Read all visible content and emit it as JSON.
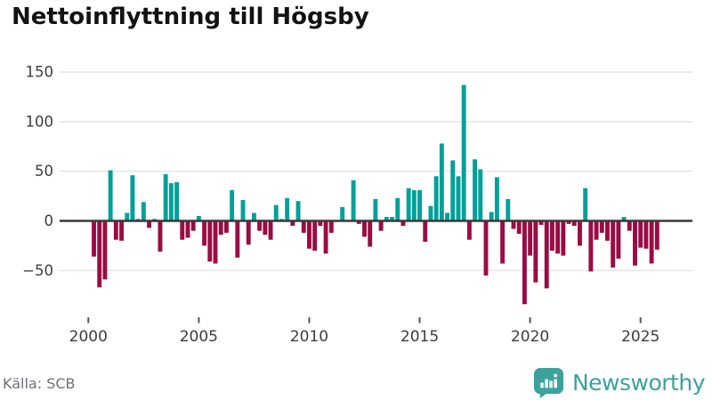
{
  "header": {
    "title": "Nettoinflyttning till Högsby"
  },
  "footer": {
    "source": "Källa: SCB",
    "brand": "Newsworthy",
    "brand_icon": "newsworthy-bubble-barchart-icon"
  },
  "colors": {
    "positive_bar": "#00A099",
    "negative_bar": "#9A0C44",
    "gridline": "#e7e7e7",
    "zero_axis": "#383838",
    "tick_text": "#3d3d3d",
    "title_text": "#121212",
    "source_text": "#6f6f78",
    "brand_teal": "#3BA29B",
    "background": "#ffffff"
  },
  "chart_data": {
    "type": "bar",
    "title": "Nettoinflyttning till Högsby",
    "x_unit": "quarter",
    "start_year": 2000,
    "end_year": 2025,
    "x_tick_labels": [
      "2000",
      "2005",
      "2010",
      "2015",
      "2020",
      "2025"
    ],
    "y_ticks": [
      -50,
      0,
      50,
      100,
      150
    ],
    "ylim": [
      -90,
      160
    ],
    "grid": true,
    "legend": "none",
    "ylabel": "",
    "xlabel": "",
    "series": [
      {
        "name": "Nettoinflyttning",
        "values": [
          0,
          -36,
          -67,
          -59,
          51,
          -19,
          -20,
          8,
          46,
          2,
          19,
          -7,
          2,
          -31,
          47,
          38,
          39,
          -19,
          -17,
          -10,
          5,
          -25,
          -41,
          -43,
          -14,
          -12,
          31,
          -37,
          21,
          -24,
          8,
          -10,
          -14,
          -19,
          16,
          2,
          23,
          -5,
          20,
          -12,
          -28,
          -30,
          -5,
          -33,
          -12,
          0,
          14,
          0,
          41,
          -3,
          -16,
          -26,
          22,
          -10,
          4,
          4,
          23,
          -5,
          33,
          31,
          31,
          -21,
          15,
          45,
          78,
          8,
          61,
          45,
          137,
          -19,
          62,
          52,
          -55,
          9,
          44,
          -43,
          22,
          -8,
          -13,
          -84,
          -35,
          -62,
          -4,
          -68,
          -30,
          -33,
          -35,
          -3,
          -5,
          -25,
          33,
          -51,
          -19,
          -12,
          -20,
          -47,
          -38,
          4,
          -10,
          -45,
          -27,
          -28,
          -43,
          -29
        ]
      }
    ]
  }
}
